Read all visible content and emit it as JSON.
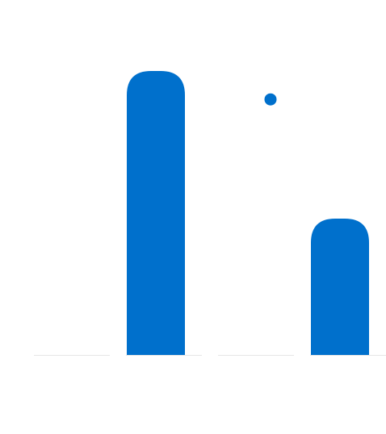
{
  "chart_data": {
    "type": "bar",
    "categories": [
      null,
      null,
      null,
      null
    ],
    "series": [
      {
        "type": "bar",
        "color": "#0070cc",
        "values": [
          0,
          100,
          null,
          48
        ]
      },
      {
        "type": "scatter",
        "color": "#0070cc",
        "values": [
          null,
          null,
          90,
          null
        ]
      }
    ],
    "ylim": [
      0,
      100
    ]
  }
}
